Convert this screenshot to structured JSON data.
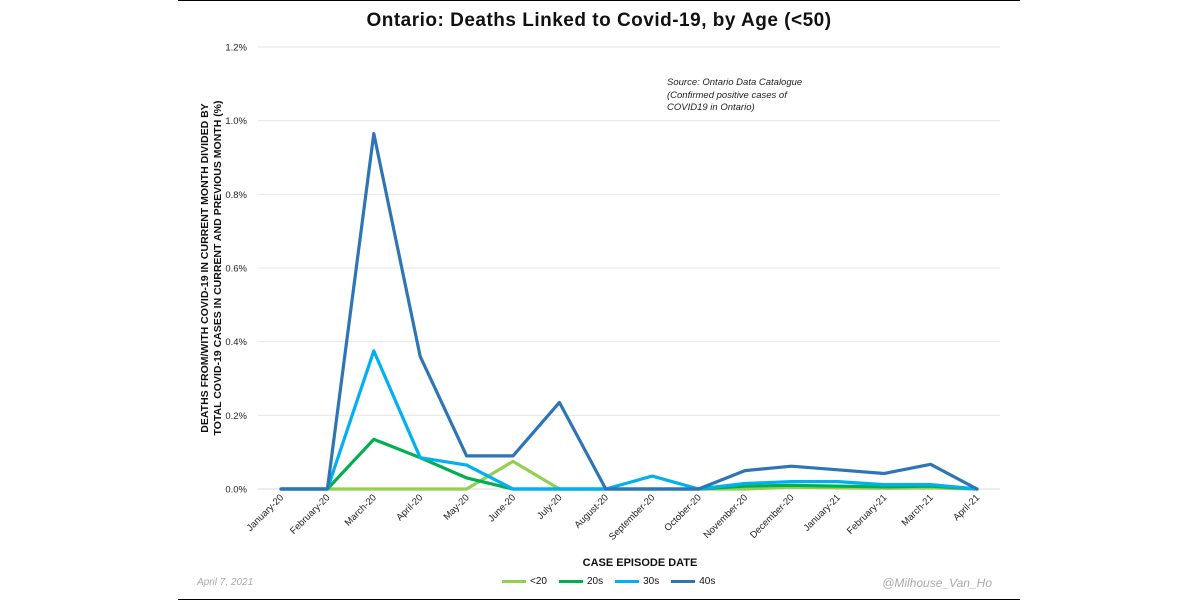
{
  "chart_data": {
    "type": "line",
    "title": "Ontario: Deaths Linked to Covid-19, by Age (<50)",
    "xlabel": "CASE EPISODE DATE",
    "ylabel_lines": [
      "DEATHS FROM/WITH COVID-19 IN CURRENT MONTH DIVIDED BY",
      "TOTAL COVID-19 CASES IN CURRENT AND PREVIOUS MONTH (%)"
    ],
    "categories": [
      "January-20",
      "February-20",
      "March-20",
      "April-20",
      "May-20",
      "June-20",
      "July-20",
      "August-20",
      "September-20",
      "October-20",
      "November-20",
      "December-20",
      "January-21",
      "February-21",
      "March-21",
      "April-21"
    ],
    "y_ticks": [
      "0.0%",
      "0.2%",
      "0.4%",
      "0.6%",
      "0.8%",
      "1.0%",
      "1.2%"
    ],
    "ylim": [
      0,
      1.2
    ],
    "grid": true,
    "legend_position": "bottom",
    "annotation": [
      "Source: Ontario Data Catalogue",
      "(Confirmed positive cases of",
      "COVID19 in Ontario)"
    ],
    "series": [
      {
        "name": "<20",
        "color": "#92d050",
        "values": [
          0,
          0,
          0,
          0,
          0,
          0.075,
          0,
          0,
          0,
          0,
          0,
          0.005,
          0.003,
          0.002,
          0.003,
          0
        ]
      },
      {
        "name": "20s",
        "color": "#00b050",
        "values": [
          0,
          0,
          0.135,
          0.085,
          0.03,
          0,
          0,
          0,
          0,
          0,
          0.008,
          0.01,
          0.008,
          0.006,
          0.008,
          0
        ]
      },
      {
        "name": "30s",
        "color": "#00b0f0",
        "values": [
          0,
          0,
          0.375,
          0.085,
          0.065,
          0,
          0,
          0,
          0.035,
          0,
          0.015,
          0.02,
          0.02,
          0.012,
          0.012,
          0
        ]
      },
      {
        "name": "40s",
        "color": "#2e75b6",
        "values": [
          0,
          0,
          0.965,
          0.36,
          0.09,
          0.09,
          0.235,
          0,
          0,
          0,
          0.05,
          0.062,
          0.052,
          0.042,
          0.067,
          0
        ]
      }
    ]
  },
  "footer": {
    "date": "April 7, 2021",
    "handle": "@Milhouse_Van_Ho"
  }
}
